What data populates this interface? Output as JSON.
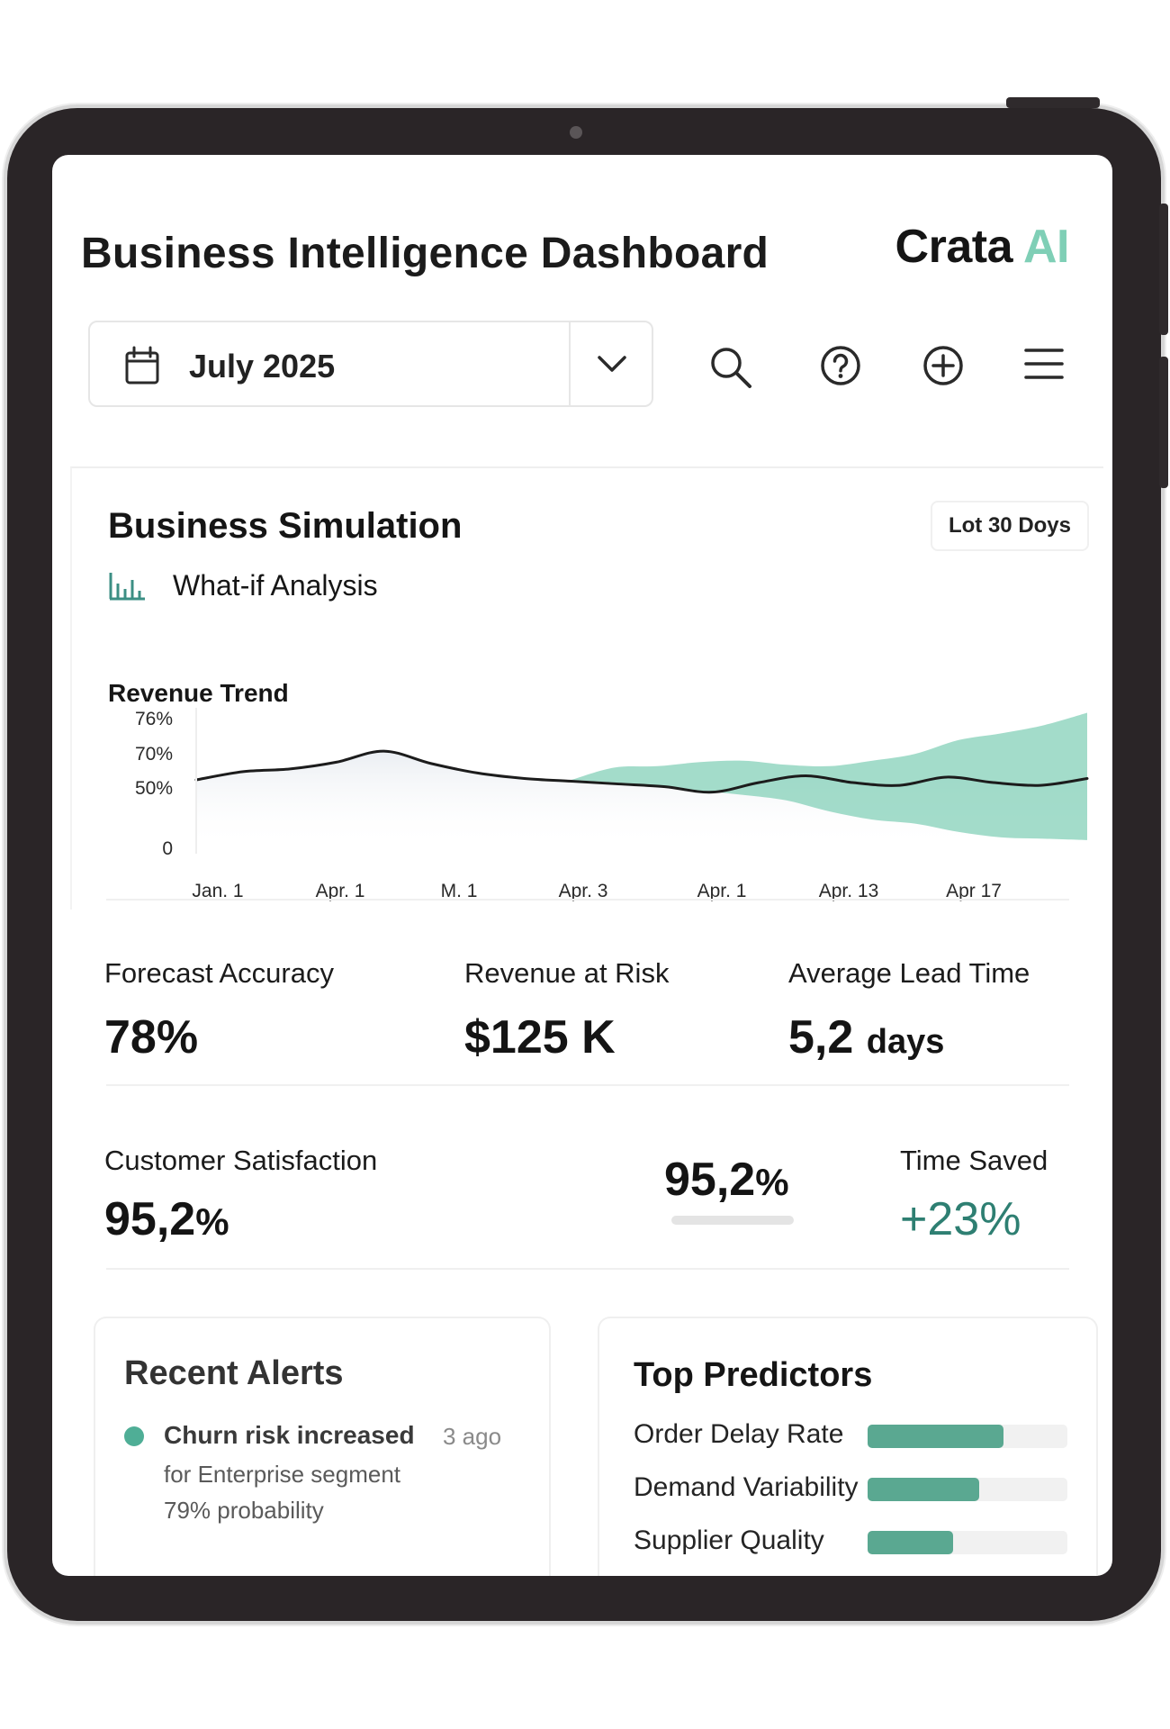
{
  "header": {
    "title": "Business Intelligence Dashboard",
    "brand_primary": "Crata",
    "brand_accent": "AI"
  },
  "toolbar": {
    "date_value": "July 2025",
    "icons": [
      "calendar-icon",
      "chevron-down-icon",
      "search-icon",
      "help-icon",
      "add-icon",
      "menu-icon"
    ]
  },
  "simulation": {
    "title": "Business Simulation",
    "range_badge": "Lot 30 Doys",
    "subtitle": "What-if Analysis"
  },
  "chart_data": {
    "type": "line",
    "title": "Revenue Trend",
    "y_ticks": [
      "76%",
      "70%",
      "50%",
      "0"
    ],
    "x_ticks": [
      "Jan. 1",
      "Apr. 1",
      "M. 1",
      "Apr. 3",
      "Apr. 1",
      "Apr. 13",
      "Apr 17"
    ],
    "series": [
      {
        "values": [
          50,
          56,
          58,
          63,
          71,
          62,
          55,
          51,
          49,
          47,
          45,
          41,
          48,
          53,
          48,
          46,
          52,
          48,
          46,
          51
        ]
      }
    ],
    "forecast_band": {
      "start_index": 8,
      "upper": [
        50,
        59,
        60,
        63,
        64,
        61,
        60,
        64,
        69,
        79,
        84,
        90,
        99
      ],
      "lower": [
        50,
        48,
        45,
        42,
        39,
        35,
        27,
        21,
        18,
        12,
        8,
        7,
        6
      ]
    },
    "ylim": [
      0,
      100
    ],
    "grid": false,
    "colors": {
      "line": "#1c1c1c",
      "band": "#7fcfb6"
    }
  },
  "metrics": {
    "forecast_accuracy": {
      "label": "Forecast Accuracy",
      "value": "78%"
    },
    "revenue_at_risk": {
      "label": "Revenue at Risk",
      "value": "$125 K"
    },
    "avg_lead_time": {
      "label": "Average Lead Time",
      "value": "5,2",
      "unit": "days"
    },
    "customer_satisfaction": {
      "label": "Customer Satisfaction",
      "value": "95,2",
      "unit": "%"
    },
    "secondary_value": {
      "value": "95,2",
      "unit": "%"
    },
    "time_saved": {
      "label": "Time Saved",
      "value": "+23%"
    }
  },
  "alerts": {
    "title": "Recent Alerts",
    "items": [
      {
        "title": "Churn risk increased",
        "time": "3 ago",
        "line1": "for Enterprise segment",
        "line2": "79% probability"
      }
    ]
  },
  "predictors": {
    "title": "Top Predictors",
    "items": [
      {
        "label": "Order Delay Rate",
        "level": 0.68
      },
      {
        "label": "Demand Variability",
        "level": 0.56
      },
      {
        "label": "Supplier Quality",
        "level": 0.43
      }
    ]
  },
  "colors": {
    "accent": "#7fcfb6",
    "accent_dark": "#2e7f72",
    "bar": "#5aa891",
    "frame": "#2a2527"
  }
}
